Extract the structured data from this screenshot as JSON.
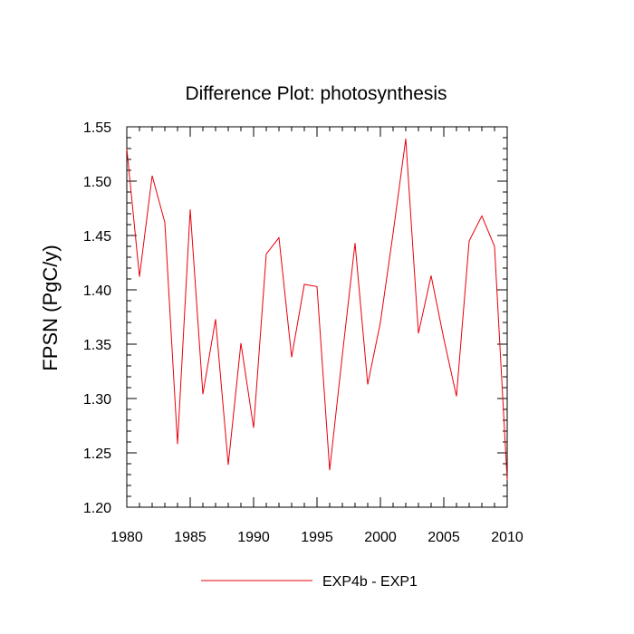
{
  "chart_data": {
    "type": "line",
    "title": "Difference Plot: photosynthesis",
    "xlabel": "",
    "ylabel": "FPSN  (PgC/y)",
    "xlim": [
      1980,
      2010
    ],
    "ylim": [
      1.2,
      1.55
    ],
    "xticks": [
      "1980",
      "1985",
      "1990",
      "1995",
      "2000",
      "2005",
      "2010"
    ],
    "yticks": [
      "1.20",
      "1.25",
      "1.30",
      "1.35",
      "1.40",
      "1.45",
      "1.50",
      "1.55"
    ],
    "grid": false,
    "legend_position": "bottom",
    "series": [
      {
        "name": "EXP4b - EXP1",
        "color": "#e8000b",
        "x": [
          1980,
          1981,
          1982,
          1983,
          1984,
          1985,
          1986,
          1987,
          1988,
          1989,
          1990,
          1991,
          1992,
          1993,
          1994,
          1995,
          1996,
          1997,
          1998,
          1999,
          2000,
          2001,
          2002,
          2003,
          2004,
          2005,
          2006,
          2007,
          2008,
          2009,
          2010
        ],
        "y": [
          1.53,
          1.412,
          1.505,
          1.462,
          1.258,
          1.474,
          1.304,
          1.373,
          1.239,
          1.351,
          1.273,
          1.433,
          1.448,
          1.338,
          1.405,
          1.403,
          1.234,
          1.34,
          1.443,
          1.313,
          1.37,
          1.452,
          1.539,
          1.36,
          1.413,
          1.355,
          1.302,
          1.445,
          1.468,
          1.44,
          1.225
        ]
      }
    ]
  }
}
